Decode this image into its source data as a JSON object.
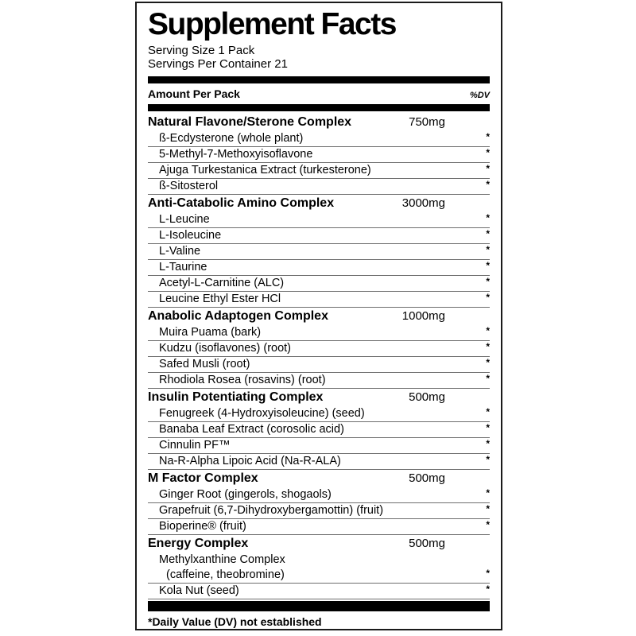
{
  "colors": {
    "ink": "#000000",
    "border": "#1a1a1a",
    "hairline": "#6e6e6e",
    "paper": "#ffffff"
  },
  "label": {
    "title": "Supplement Facts",
    "serving_size": "Serving Size 1 Pack",
    "servings_per_container": "Servings Per Container 21",
    "amount_header": "Amount Per Pack",
    "dv_header": "%DV",
    "footnote": "*Daily Value (DV) not established",
    "sections": [
      {
        "name": "Natural Flavone/Sterone Complex",
        "amount": "750mg",
        "ingredients": [
          {
            "lines": [
              "ß-Ecdysterone (whole plant)"
            ],
            "dv": "*"
          },
          {
            "lines": [
              "5-Methyl-7-Methoxyisoflavone"
            ],
            "dv": "*"
          },
          {
            "lines": [
              "Ajuga Turkestanica Extract (turkesterone)"
            ],
            "dv": "*"
          },
          {
            "lines": [
              "ß-Sitosterol"
            ],
            "dv": "*"
          }
        ]
      },
      {
        "name": "Anti-Catabolic Amino Complex",
        "amount": "3000mg",
        "ingredients": [
          {
            "lines": [
              "L-Leucine"
            ],
            "dv": "*"
          },
          {
            "lines": [
              "L-Isoleucine"
            ],
            "dv": "*"
          },
          {
            "lines": [
              "L-Valine"
            ],
            "dv": "*"
          },
          {
            "lines": [
              "L-Taurine"
            ],
            "dv": "*"
          },
          {
            "lines": [
              "Acetyl-L-Carnitine (ALC)"
            ],
            "dv": "*"
          },
          {
            "lines": [
              "Leucine Ethyl Ester HCl"
            ],
            "dv": "*"
          }
        ]
      },
      {
        "name": "Anabolic Adaptogen Complex",
        "amount": "1000mg",
        "ingredients": [
          {
            "lines": [
              "Muira Puama (bark)"
            ],
            "dv": "*"
          },
          {
            "lines": [
              "Kudzu (isoflavones) (root)"
            ],
            "dv": "*"
          },
          {
            "lines": [
              "Safed Musli (root)"
            ],
            "dv": "*"
          },
          {
            "lines": [
              "Rhodiola Rosea (rosavins) (root)"
            ],
            "dv": "*"
          }
        ]
      },
      {
        "name": "Insulin Potentiating Complex",
        "amount": "500mg",
        "ingredients": [
          {
            "lines": [
              "Fenugreek (4-Hydroxyisoleucine) (seed)"
            ],
            "dv": "*"
          },
          {
            "lines": [
              "Banaba Leaf Extract (corosolic acid)"
            ],
            "dv": "*"
          },
          {
            "lines": [
              "Cinnulin PF™"
            ],
            "dv": "*"
          },
          {
            "lines": [
              "Na-R-Alpha Lipoic Acid (Na-R-ALA)"
            ],
            "dv": "*"
          }
        ]
      },
      {
        "name": "M Factor Complex",
        "amount": "500mg",
        "ingredients": [
          {
            "lines": [
              "Ginger Root (gingerols, shogaols)"
            ],
            "dv": "*"
          },
          {
            "lines": [
              "Grapefruit (6,7-Dihydroxybergamottin) (fruit)"
            ],
            "dv": "*"
          },
          {
            "lines": [
              "Bioperine® (fruit)"
            ],
            "dv": "*"
          }
        ]
      },
      {
        "name": "Energy Complex",
        "amount": "500mg",
        "ingredients": [
          {
            "lines": [
              "Methylxanthine Complex",
              "(caffeine, theobromine)"
            ],
            "dv": "*"
          },
          {
            "lines": [
              "Kola Nut (seed)"
            ],
            "dv": "*"
          }
        ]
      }
    ]
  }
}
